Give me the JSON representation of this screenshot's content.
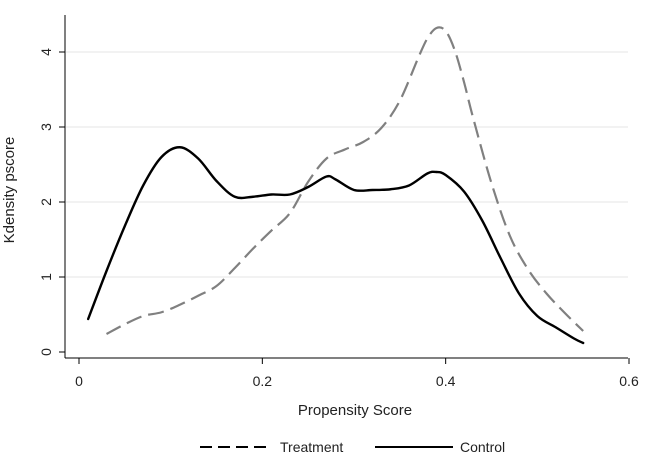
{
  "chart_data": {
    "type": "line",
    "xlabel": "Propensity Score",
    "ylabel": "Kdensity pscore",
    "xlim": [
      0,
      0.6
    ],
    "ylim": [
      0,
      4.5
    ],
    "x_ticks": [
      "0",
      "0.2",
      "0.4",
      "0.6"
    ],
    "y_ticks": [
      "0",
      "1",
      "2",
      "3",
      "4"
    ],
    "grid": true,
    "legend_position": "bottom",
    "series": [
      {
        "name": "Treatment",
        "style": "dashed",
        "color": "#808080",
        "points": [
          [
            0.03,
            0.24
          ],
          [
            0.05,
            0.37
          ],
          [
            0.07,
            0.48
          ],
          [
            0.09,
            0.53
          ],
          [
            0.11,
            0.63
          ],
          [
            0.13,
            0.75
          ],
          [
            0.15,
            0.88
          ],
          [
            0.17,
            1.12
          ],
          [
            0.19,
            1.38
          ],
          [
            0.21,
            1.62
          ],
          [
            0.23,
            1.85
          ],
          [
            0.25,
            2.27
          ],
          [
            0.27,
            2.58
          ],
          [
            0.29,
            2.7
          ],
          [
            0.31,
            2.8
          ],
          [
            0.33,
            2.99
          ],
          [
            0.35,
            3.35
          ],
          [
            0.37,
            3.92
          ],
          [
            0.38,
            4.18
          ],
          [
            0.39,
            4.32
          ],
          [
            0.4,
            4.28
          ],
          [
            0.41,
            4.02
          ],
          [
            0.42,
            3.6
          ],
          [
            0.43,
            3.12
          ],
          [
            0.45,
            2.25
          ],
          [
            0.47,
            1.55
          ],
          [
            0.49,
            1.1
          ],
          [
            0.51,
            0.78
          ],
          [
            0.53,
            0.52
          ],
          [
            0.55,
            0.28
          ]
        ]
      },
      {
        "name": "Control",
        "style": "solid",
        "color": "#000000",
        "points": [
          [
            0.01,
            0.44
          ],
          [
            0.03,
            1.08
          ],
          [
            0.05,
            1.68
          ],
          [
            0.07,
            2.22
          ],
          [
            0.09,
            2.6
          ],
          [
            0.11,
            2.73
          ],
          [
            0.13,
            2.58
          ],
          [
            0.15,
            2.28
          ],
          [
            0.17,
            2.07
          ],
          [
            0.19,
            2.07
          ],
          [
            0.21,
            2.1
          ],
          [
            0.23,
            2.1
          ],
          [
            0.25,
            2.2
          ],
          [
            0.27,
            2.34
          ],
          [
            0.28,
            2.3
          ],
          [
            0.3,
            2.16
          ],
          [
            0.32,
            2.16
          ],
          [
            0.34,
            2.17
          ],
          [
            0.36,
            2.22
          ],
          [
            0.38,
            2.38
          ],
          [
            0.39,
            2.4
          ],
          [
            0.4,
            2.36
          ],
          [
            0.42,
            2.14
          ],
          [
            0.44,
            1.75
          ],
          [
            0.46,
            1.25
          ],
          [
            0.48,
            0.78
          ],
          [
            0.5,
            0.48
          ],
          [
            0.52,
            0.33
          ],
          [
            0.54,
            0.18
          ],
          [
            0.55,
            0.12
          ]
        ]
      }
    ]
  }
}
